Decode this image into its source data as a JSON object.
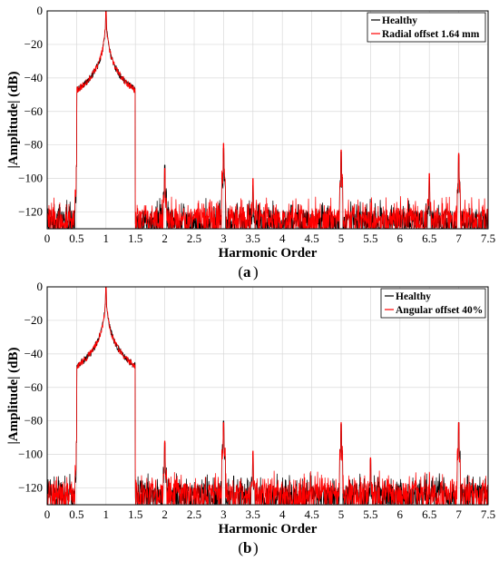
{
  "chart_data": [
    {
      "type": "line",
      "panel": "a",
      "caption_letter": "a",
      "xlabel": "Harmonic Order",
      "ylabel": "|Amplitude| (dB)",
      "xlim": [
        0,
        7.5
      ],
      "ylim": [
        -130,
        0
      ],
      "xticks": [
        "0",
        "0.5",
        "1",
        "1.5",
        "2",
        "2.5",
        "3",
        "3.5",
        "4",
        "4.5",
        "5",
        "5.5",
        "6",
        "6.5",
        "7",
        "7.5"
      ],
      "yticks": [
        "0",
        "−20",
        "−40",
        "−60",
        "−80",
        "−100",
        "−120"
      ],
      "legend_position": "top-right",
      "series": [
        {
          "name": "Healthy",
          "color": "#000000",
          "noise_floor": -125,
          "peaks": [
            [
              0.5,
              -93
            ],
            [
              1.0,
              0
            ],
            [
              2.0,
              -92
            ],
            [
              3.0,
              -82
            ],
            [
              3.5,
              -104
            ],
            [
              5.0,
              -84
            ],
            [
              6.5,
              -99
            ],
            [
              7.0,
              -86
            ]
          ]
        },
        {
          "name": "Radial offset 1.64 mm",
          "color": "#ff0000",
          "noise_floor": -124,
          "peaks": [
            [
              0.5,
              -92
            ],
            [
              1.0,
              0
            ],
            [
              2.0,
              -94
            ],
            [
              3.0,
              -79
            ],
            [
              3.5,
              -100
            ],
            [
              5.0,
              -83
            ],
            [
              6.5,
              -97
            ],
            [
              7.0,
              -85
            ]
          ]
        }
      ]
    },
    {
      "type": "line",
      "panel": "b",
      "caption_letter": "b",
      "xlabel": "Harmonic Order",
      "ylabel": "|Amplitude| (dB)",
      "xlim": [
        0,
        7.5
      ],
      "ylim": [
        -130,
        0
      ],
      "xticks": [
        "0",
        "0.5",
        "1",
        "1.5",
        "2",
        "2.5",
        "3",
        "3.5",
        "4",
        "4.5",
        "5",
        "5.5",
        "6",
        "6.5",
        "7",
        "7.5"
      ],
      "yticks": [
        "0",
        "−20",
        "−40",
        "−60",
        "−80",
        "−100",
        "−120"
      ],
      "legend_position": "top-right",
      "series": [
        {
          "name": "Healthy",
          "color": "#000000",
          "noise_floor": -124,
          "peaks": [
            [
              0.5,
              -93
            ],
            [
              1.0,
              0
            ],
            [
              2.0,
              -93
            ],
            [
              3.0,
              -80
            ],
            [
              3.5,
              -99
            ],
            [
              5.0,
              -82
            ],
            [
              5.5,
              -103
            ],
            [
              7.0,
              -81
            ]
          ]
        },
        {
          "name": "Angular offset 40%",
          "color": "#ff0000",
          "noise_floor": -123,
          "peaks": [
            [
              0.5,
              -92
            ],
            [
              1.0,
              0
            ],
            [
              2.0,
              -92
            ],
            [
              3.0,
              -81
            ],
            [
              3.5,
              -98
            ],
            [
              5.0,
              -81
            ],
            [
              5.5,
              -102
            ],
            [
              7.0,
              -81
            ]
          ]
        }
      ]
    }
  ]
}
